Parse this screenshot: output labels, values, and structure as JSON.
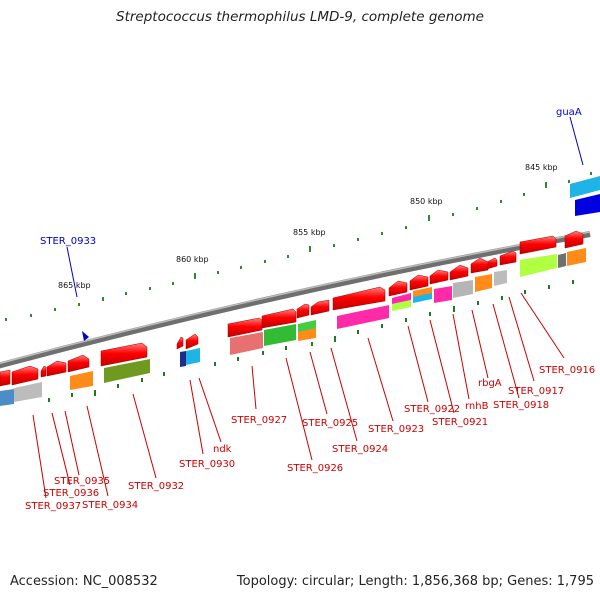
{
  "title": "Streptococcus thermophilus LMD-9, complete genome",
  "footer": {
    "accession": "Accession: NC_008532",
    "topology": "Topology: circular; Length: 1,856,368 bp; Genes: 1,795"
  },
  "scale_ticks": [
    "845 kbp",
    "850 kbp",
    "855 kbp",
    "860 kbp",
    "865 kbp"
  ],
  "colors": {
    "backbone": "#8a8a8a",
    "gene_red": "#ff0000",
    "label_red": "#cc0000",
    "label_blue": "#0000cc",
    "tick_green": "#1a7a1a"
  },
  "blue_labels": [
    "guaA",
    "STER_0933"
  ],
  "gene_labels": [
    "STER_0916",
    "STER_0917",
    "STER_0918",
    "rbgA",
    "rnhB",
    "STER_0921",
    "STER_0922",
    "STER_0923",
    "STER_0924",
    "STER_0925",
    "STER_0926",
    "STER_0927",
    "ndk",
    "STER_0930",
    "STER_0932",
    "STER_0934",
    "STER_0935",
    "STER_0936",
    "STER_0937"
  ]
}
